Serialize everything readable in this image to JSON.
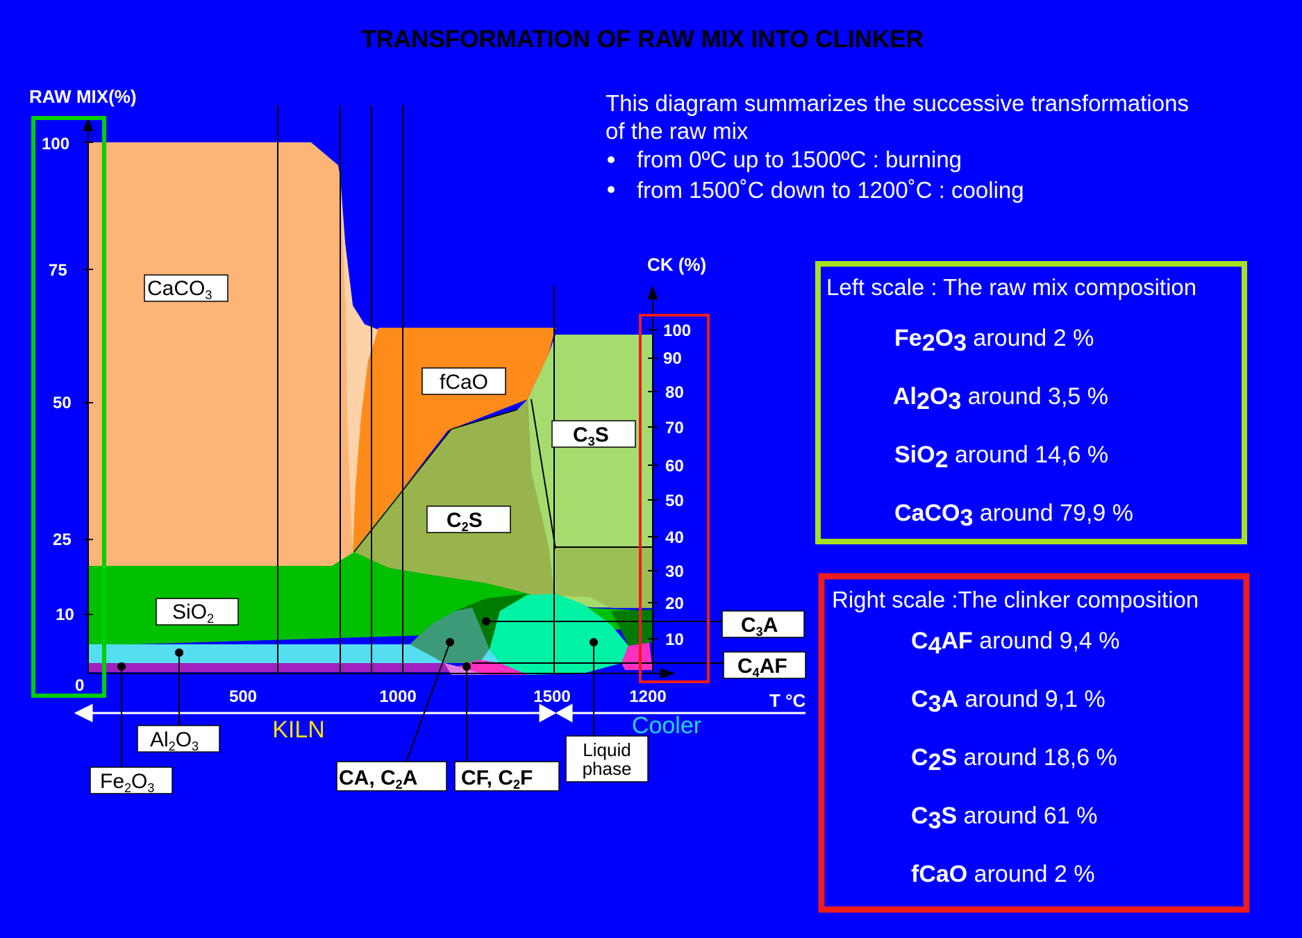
{
  "title": "TRANSFORMATION OF RAW MIX INTO CLINKER",
  "left_axis": {
    "label": "RAW MIX(%)",
    "ticks": [
      "100",
      "75",
      "50",
      "25",
      "10",
      "0"
    ]
  },
  "right_axis": {
    "label": "CK (%)",
    "ticks": [
      "100",
      "90",
      "80",
      "70",
      "60",
      "50",
      "40",
      "30",
      "20",
      "10"
    ]
  },
  "x_axis": {
    "label": "T °C",
    "ticks": [
      "500",
      "1000",
      "1500",
      "1200"
    ]
  },
  "zones": {
    "kiln": "KILN",
    "cooler": "Cooler"
  },
  "description": {
    "line1": "This diagram summarizes the successive transformations",
    "line2": "of the raw mix",
    "bullet1": "from 0ºC up to 1500ºC  : burning",
    "bullet2": "from 1500˚C down to 1200˚C : cooling"
  },
  "regions": {
    "caco3": "CaCO",
    "fcao": "fCaO",
    "c3s": "C",
    "c2s": "C",
    "sio2": "SiO",
    "c3a": "C",
    "c4af": "C",
    "al2o3": "Al",
    "fe2o3": "Fe",
    "ca_c2a_a": "CA, C",
    "cf_c2f_a": "CF, C",
    "liquid_line1": "Liquid",
    "liquid_line2": "phase"
  },
  "subscripts": {
    "one": "2",
    "two": "3",
    "three": "4",
    "s": "S",
    "a": "A",
    "af": "AF",
    "f": "F",
    "o": "O"
  },
  "left_box": {
    "title": "Left scale : The raw mix composition",
    "items": [
      {
        "name": "Fe",
        "sub1": "2",
        "name2": "O",
        "sub2": "3",
        "value": " around 2 %"
      },
      {
        "name": "Al",
        "sub1": "2",
        "name2": "O",
        "sub2": "3",
        "value": " around 3,5 %"
      },
      {
        "name": "SiO",
        "sub1": "2",
        "value": " around 14,6 %"
      },
      {
        "name": "CaCO",
        "sub1": "3",
        "value": " around 79,9 %"
      }
    ]
  },
  "right_box": {
    "title": "Right scale :The clinker composition",
    "items": [
      {
        "name": "C",
        "sub": "4",
        "tail": "AF",
        "value": " around 9,4 %"
      },
      {
        "name": "C",
        "sub": "3",
        "tail": "A",
        "value": "  around 9,1 %"
      },
      {
        "name": "C",
        "sub": "2",
        "tail": "S",
        "value": "  around 18,6 %"
      },
      {
        "name": "C",
        "sub": "3",
        "tail": "S",
        "value": "  around 61 %"
      },
      {
        "name": "fCaO",
        "sub": "",
        "tail": "",
        "value": " around 2 %"
      }
    ]
  },
  "colors": {
    "background": "#0000FF",
    "caco3": "#FCB577",
    "caco3_light": "#FDD2A8",
    "fcao": "#FF8C1A",
    "c3s": "#A6DC6E",
    "c2s": "#99B44C",
    "sio2": "#00C000",
    "al2o3": "#55DDF0",
    "fe2o3": "#A020C0",
    "c3a": "#007A00",
    "ca_c2a": "#3C9A78",
    "liquid": "#00F2A5",
    "cf": "#FF2FC0",
    "green_box": "#00D000",
    "yellow_box": "#A8E020",
    "red_box": "#EE1C1C"
  }
}
